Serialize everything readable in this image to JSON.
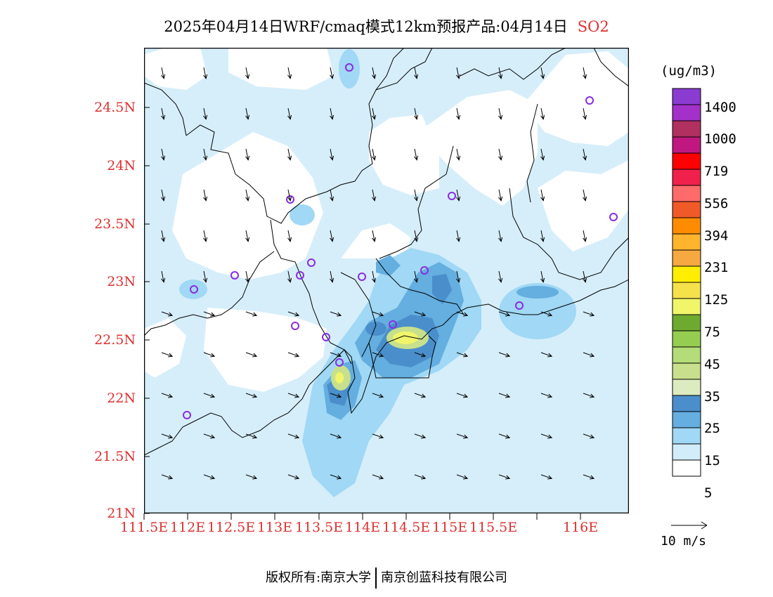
{
  "title": {
    "text": "2025年04月14日WRF/cmaq模式12km预报产品:04月14日",
    "variable": "SO2"
  },
  "axes": {
    "lat_labels": [
      "24.5N",
      "24N",
      "23.5N",
      "23N",
      "22.5N",
      "22N",
      "21.5N",
      "21N"
    ],
    "lon_labels": [
      "111.5E",
      "112E",
      "112.5E",
      "113E",
      "113.5E",
      "114E",
      "114.5E",
      "115E",
      "115.5E",
      "116E"
    ],
    "lat_range": [
      21.0,
      25.0
    ],
    "lon_range": [
      111.5,
      116.5
    ]
  },
  "colorbar": {
    "unit": "(ug/m3)",
    "levels": [
      "1400",
      "1000",
      "719",
      "556",
      "394",
      "231",
      "125",
      "75",
      "45",
      "35",
      "25",
      "15",
      "5"
    ],
    "colors": [
      "#8a3bd0",
      "#a330c8",
      "#b03060",
      "#c01880",
      "#ff0000",
      "#f0204c",
      "#ff6a6a",
      "#f05a28",
      "#ff8c00",
      "#ffb42e",
      "#f5a940",
      "#ffee00",
      "#f5e14a",
      "#f0f56a",
      "#6eaa30",
      "#96cd50",
      "#b4dc78",
      "#c8e08c",
      "#dcecc0",
      "#4a8fcb",
      "#64aee0",
      "#a0d8f5",
      "#d2ecfa",
      "#ffffff"
    ]
  },
  "wind_reference": {
    "label": "10 m/s"
  },
  "map_colors": {
    "background": "#d6eefa",
    "level_15": "#a0d8f5",
    "level_25": "#64aee0",
    "level_35": "#4a8fcb",
    "level_45": "#c8e08c",
    "level_75": "#f0f56a",
    "station_marker": "#8a2be2"
  },
  "footer": {
    "left": "版权所有:南京大学",
    "right": "南京创蓝科技有限公司"
  }
}
